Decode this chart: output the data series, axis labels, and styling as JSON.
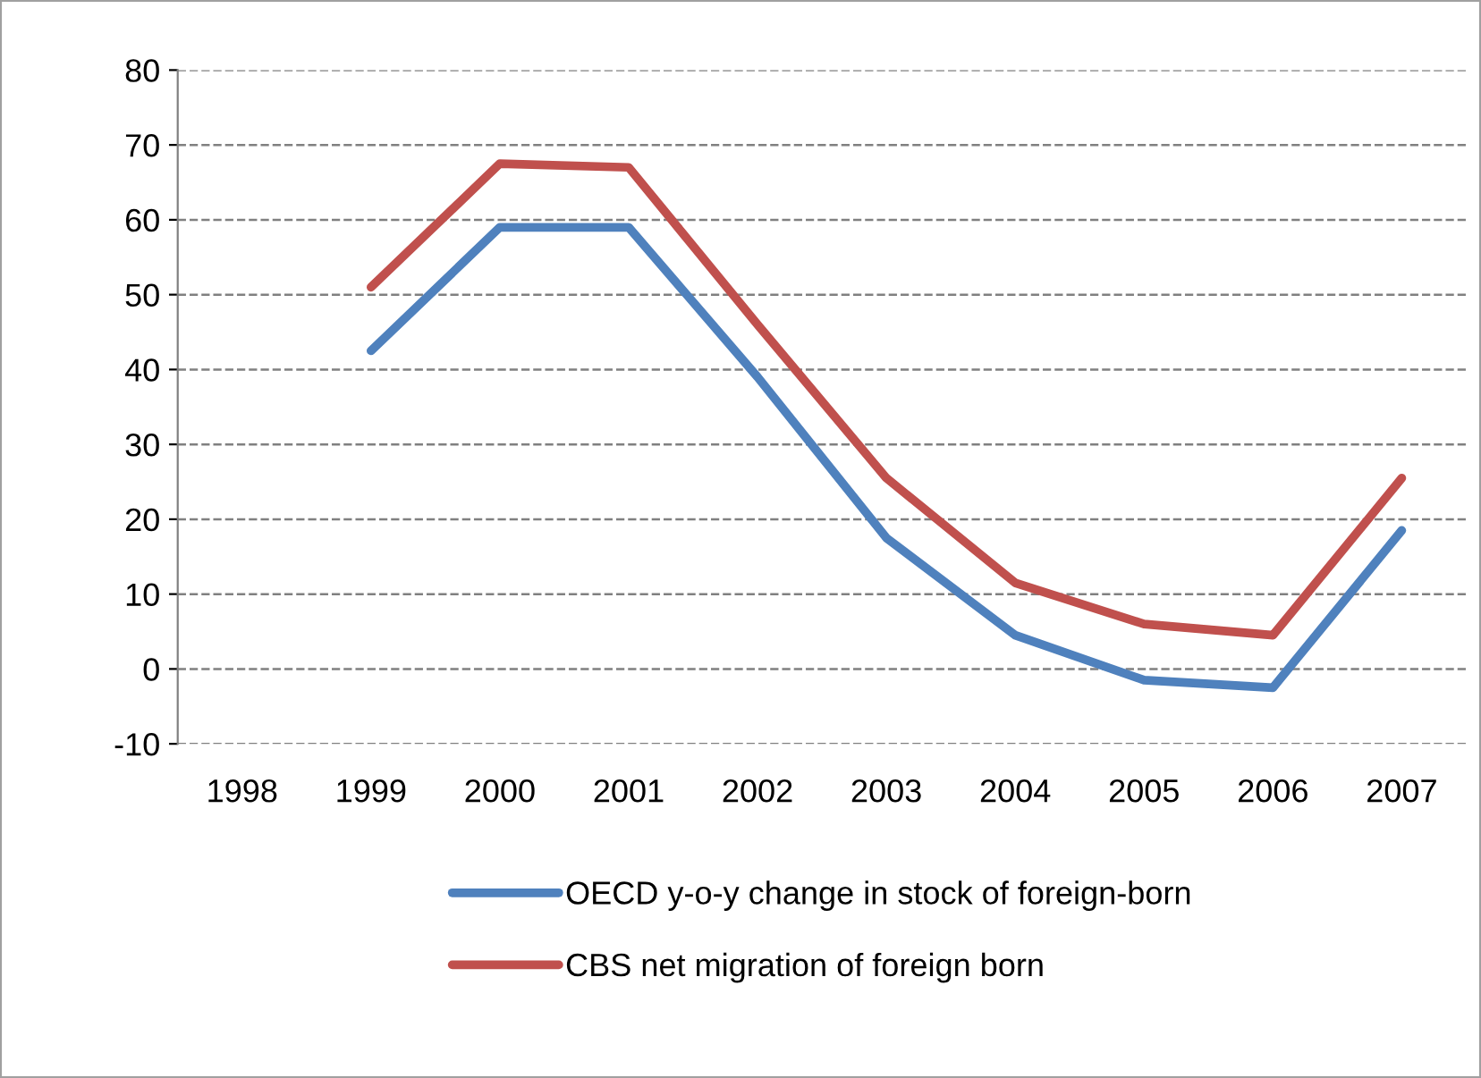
{
  "chart_data": {
    "type": "line",
    "categories": [
      "1998",
      "1999",
      "2000",
      "2001",
      "2002",
      "2003",
      "2004",
      "2005",
      "2006",
      "2007"
    ],
    "series": [
      {
        "name": "OECD y-o-y change in stock of foreign-born",
        "color": "#4f81bd",
        "values": [
          null,
          42.5,
          59,
          59,
          39,
          17.5,
          4.5,
          -1.5,
          -2.5,
          18.5
        ]
      },
      {
        "name": "CBS net migration of foreign born",
        "color": "#c0504d",
        "values": [
          null,
          51,
          67.5,
          67,
          46,
          25.5,
          11.5,
          6,
          4.5,
          25.5
        ]
      }
    ],
    "ylim": [
      -10,
      80
    ],
    "yticks": [
      -10,
      0,
      10,
      20,
      30,
      40,
      50,
      60,
      70,
      80
    ],
    "grid": "y",
    "legend": "bottom",
    "marker": "none",
    "line_style": "solid"
  }
}
